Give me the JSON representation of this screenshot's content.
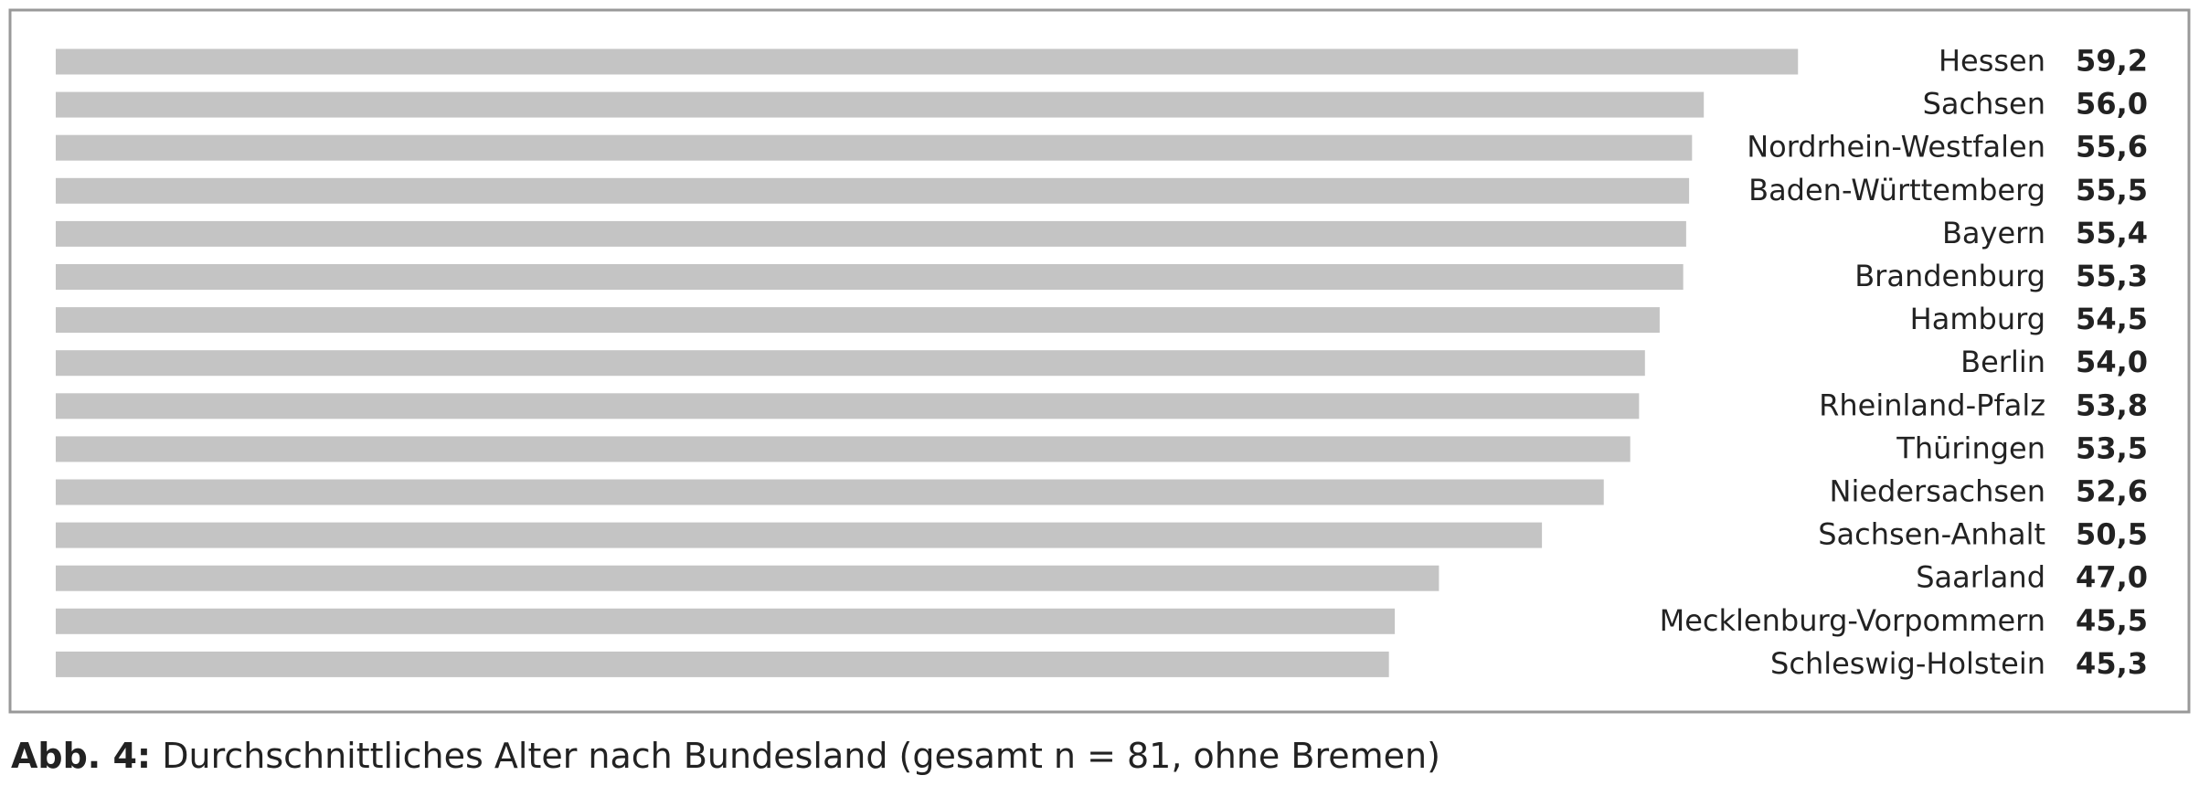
{
  "chart_data": {
    "type": "hbar",
    "caption_label": "Abb. 4:",
    "caption": "Durchschnittliches Alter nach Bundesland (gesamt n = 81, ohne Bremen)",
    "categories": [
      "Hessen",
      "Sachsen",
      "Nordrhein-Westfalen",
      "Baden-Württemberg",
      "Bayern",
      "Brandenburg",
      "Hamburg",
      "Berlin",
      "Rheinland-Pfalz",
      "Thüringen",
      "Niedersachsen",
      "Sachsen-Anhalt",
      "Saarland",
      "Mecklenburg-Vorpommern",
      "Schleswig-Holstein"
    ],
    "values": [
      59.2,
      56.0,
      55.6,
      55.5,
      55.4,
      55.3,
      54.5,
      54.0,
      53.8,
      53.5,
      52.6,
      50.5,
      47.0,
      45.5,
      45.3
    ],
    "value_labels": [
      "59,2",
      "56,0",
      "55,6",
      "55,5",
      "55,4",
      "55,3",
      "54,5",
      "54,0",
      "53,8",
      "53,5",
      "52,6",
      "50,5",
      "47,0",
      "45,5",
      "45,3"
    ],
    "color": "#c4c4c4",
    "xlim": [
      0,
      70
    ]
  }
}
